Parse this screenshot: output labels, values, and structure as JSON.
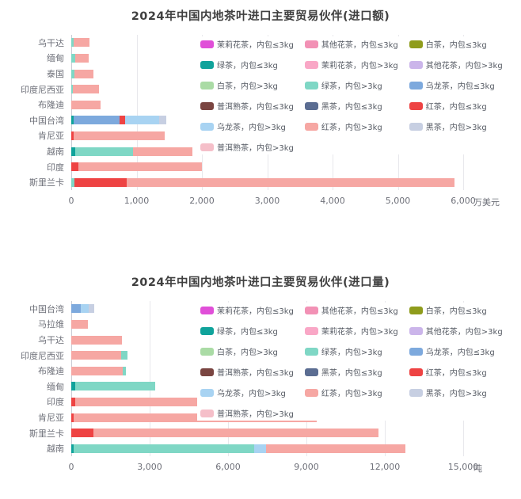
{
  "page": {
    "background": "#ffffff"
  },
  "chart_data": [
    {
      "type": "bar",
      "orientation": "horizontal-stacked",
      "title": "2024年中国内地茶叶进口主要贸易伙伴(进口额)",
      "unit": "万美元",
      "grid": true,
      "legend_position": "top-right",
      "xlim": [
        0,
        6000
      ],
      "xticks": [
        {
          "value": 0,
          "label": "0"
        },
        {
          "value": 1000,
          "label": "1,000"
        },
        {
          "value": 2000,
          "label": "2,000"
        },
        {
          "value": 3000,
          "label": "3,000"
        },
        {
          "value": 4000,
          "label": "4,000"
        },
        {
          "value": 5000,
          "label": "5,000"
        },
        {
          "value": 6000,
          "label": "6,000"
        }
      ],
      "legend_items": [
        {
          "label": "茉莉花茶，内包≤3kg",
          "color": "#e04fd8"
        },
        {
          "label": "其他花茶，内包≤3kg",
          "color": "#f291b5"
        },
        {
          "label": "白茶，内包≤3kg",
          "color": "#8f9c1c"
        },
        {
          "label": "绿茶，内包≤3kg",
          "color": "#10a39b"
        },
        {
          "label": "茉莉花茶，内包>3kg",
          "color": "#f9a7c6"
        },
        {
          "label": "其他花茶，内包>3kg",
          "color": "#cbb5ea"
        },
        {
          "label": "白茶，内包>3kg",
          "color": "#aadba5"
        },
        {
          "label": "绿茶，内包>3kg",
          "color": "#7fd7c5"
        },
        {
          "label": "乌龙茶，内包≤3kg",
          "color": "#7da9dd"
        },
        {
          "label": "普洱熟茶，内包≤3kg",
          "color": "#7a4541"
        },
        {
          "label": "黑茶，内包≤3kg",
          "color": "#5b6d92"
        },
        {
          "label": "红茶，内包≤3kg",
          "color": "#ee4343"
        },
        {
          "label": "乌龙茶，内包>3kg",
          "color": "#a8d3f2"
        },
        {
          "label": "红茶，内包>3kg",
          "color": "#f6a7a3"
        },
        {
          "label": "黑茶，内包>3kg",
          "color": "#c7cfe2"
        },
        {
          "label": "普洱熟茶，内包>3kg",
          "color": "#f5bfc9"
        }
      ],
      "bars": [
        {
          "category": "乌干达",
          "segments": [
            {
              "name": "绿茶，内包>3kg",
              "value": 40
            },
            {
              "name": "红茶，内包>3kg",
              "value": 240
            }
          ]
        },
        {
          "category": "缅甸",
          "segments": [
            {
              "name": "绿茶，内包>3kg",
              "value": 60
            },
            {
              "name": "红茶，内包>3kg",
              "value": 210
            }
          ]
        },
        {
          "category": "泰国",
          "segments": [
            {
              "name": "绿茶，内包>3kg",
              "value": 50
            },
            {
              "name": "红茶，内包>3kg",
              "value": 290
            }
          ]
        },
        {
          "category": "印度尼西亚",
          "segments": [
            {
              "name": "绿茶，内包>3kg",
              "value": 30
            },
            {
              "name": "红茶，内包>3kg",
              "value": 390
            }
          ]
        },
        {
          "category": "布隆迪",
          "segments": [
            {
              "name": "红茶，内包>3kg",
              "value": 450
            }
          ]
        },
        {
          "category": "中国台湾",
          "segments": [
            {
              "name": "绿茶，内包≤3kg",
              "value": 40
            },
            {
              "name": "乌龙茶，内包≤3kg",
              "value": 700
            },
            {
              "name": "红茶，内包≤3kg",
              "value": 80
            },
            {
              "name": "乌龙茶，内包>3kg",
              "value": 520
            },
            {
              "name": "黑茶，内包>3kg",
              "value": 110
            }
          ]
        },
        {
          "category": "肯尼亚",
          "segments": [
            {
              "name": "红茶，内包≤3kg",
              "value": 40
            },
            {
              "name": "红茶，内包>3kg",
              "value": 1390
            }
          ]
        },
        {
          "category": "越南",
          "segments": [
            {
              "name": "绿茶，内包≤3kg",
              "value": 60
            },
            {
              "name": "绿茶，内包>3kg",
              "value": 890
            },
            {
              "name": "红茶，内包>3kg",
              "value": 900
            }
          ]
        },
        {
          "category": "印度",
          "segments": [
            {
              "name": "红茶，内包≤3kg",
              "value": 110
            },
            {
              "name": "红茶，内包>3kg",
              "value": 1890
            }
          ]
        },
        {
          "category": "斯里兰卡",
          "segments": [
            {
              "name": "绿茶，内包>3kg",
              "value": 50
            },
            {
              "name": "红茶，内包≤3kg",
              "value": 800
            },
            {
              "name": "红茶，内包>3kg",
              "value": 5020
            }
          ]
        }
      ]
    },
    {
      "type": "bar",
      "orientation": "horizontal-stacked",
      "title": "2024年中国内地茶叶进口主要贸易伙伴(进口量)",
      "unit": "吨",
      "grid": true,
      "legend_position": "top-right",
      "xlim": [
        0,
        15000
      ],
      "xticks": [
        {
          "value": 0,
          "label": "0"
        },
        {
          "value": 3000,
          "label": "3,000"
        },
        {
          "value": 6000,
          "label": "6,000"
        },
        {
          "value": 9000,
          "label": "9,000"
        },
        {
          "value": 12000,
          "label": "12,000"
        },
        {
          "value": 15000,
          "label": "15,000"
        }
      ],
      "legend_items": [
        {
          "label": "茉莉花茶，内包≤3kg",
          "color": "#e04fd8"
        },
        {
          "label": "其他花茶，内包≤3kg",
          "color": "#f291b5"
        },
        {
          "label": "白茶，内包≤3kg",
          "color": "#8f9c1c"
        },
        {
          "label": "绿茶，内包≤3kg",
          "color": "#10a39b"
        },
        {
          "label": "茉莉花茶，内包>3kg",
          "color": "#f9a7c6"
        },
        {
          "label": "其他花茶，内包>3kg",
          "color": "#cbb5ea"
        },
        {
          "label": "白茶，内包>3kg",
          "color": "#aadba5"
        },
        {
          "label": "绿茶，内包>3kg",
          "color": "#7fd7c5"
        },
        {
          "label": "乌龙茶，内包≤3kg",
          "color": "#7da9dd"
        },
        {
          "label": "普洱熟茶，内包≤3kg",
          "color": "#7a4541"
        },
        {
          "label": "黑茶，内包≤3kg",
          "color": "#5b6d92"
        },
        {
          "label": "红茶，内包≤3kg",
          "color": "#ee4343"
        },
        {
          "label": "乌龙茶，内包>3kg",
          "color": "#a8d3f2"
        },
        {
          "label": "红茶，内包>3kg",
          "color": "#f6a7a3"
        },
        {
          "label": "黑茶，内包>3kg",
          "color": "#c7cfe2"
        },
        {
          "label": "普洱熟茶，内包>3kg",
          "color": "#f5bfc9"
        }
      ],
      "bars": [
        {
          "category": "中国台湾",
          "segments": [
            {
              "name": "乌龙茶，内包≤3kg",
              "value": 350
            },
            {
              "name": "乌龙茶，内包>3kg",
              "value": 330
            },
            {
              "name": "黑茶，内包>3kg",
              "value": 200
            }
          ]
        },
        {
          "category": "马拉维",
          "segments": [
            {
              "name": "红茶，内包>3kg",
              "value": 650
            }
          ]
        },
        {
          "category": "乌干达",
          "segments": [
            {
              "name": "红茶，内包>3kg",
              "value": 1950
            }
          ]
        },
        {
          "category": "印度尼西亚",
          "segments": [
            {
              "name": "红茶，内包>3kg",
              "value": 1900
            },
            {
              "name": "绿茶，内包>3kg",
              "value": 250
            }
          ]
        },
        {
          "category": "布隆迪",
          "segments": [
            {
              "name": "红茶，内包>3kg",
              "value": 1980
            },
            {
              "name": "绿茶，内包>3kg",
              "value": 120
            }
          ]
        },
        {
          "category": "缅甸",
          "segments": [
            {
              "name": "绿茶，内包≤3kg",
              "value": 150
            },
            {
              "name": "绿茶，内包>3kg",
              "value": 3050
            }
          ]
        },
        {
          "category": "印度",
          "segments": [
            {
              "name": "红茶，内包≤3kg",
              "value": 150
            },
            {
              "name": "红茶，内包>3kg",
              "value": 4850
            }
          ]
        },
        {
          "category": "肯尼亚",
          "segments": [
            {
              "name": "红茶，内包≤3kg",
              "value": 100
            },
            {
              "name": "红茶，内包>3kg",
              "value": 9300
            }
          ]
        },
        {
          "category": "斯里兰卡",
          "segments": [
            {
              "name": "红茶，内包≤3kg",
              "value": 850
            },
            {
              "name": "红茶，内包>3kg",
              "value": 10900
            }
          ]
        },
        {
          "category": "越南",
          "segments": [
            {
              "name": "绿茶，内包≤3kg",
              "value": 100
            },
            {
              "name": "绿茶，内包>3kg",
              "value": 6900
            },
            {
              "name": "乌龙茶，内包>3kg",
              "value": 450
            },
            {
              "name": "红茶，内包>3kg",
              "value": 5350
            }
          ]
        }
      ]
    }
  ]
}
